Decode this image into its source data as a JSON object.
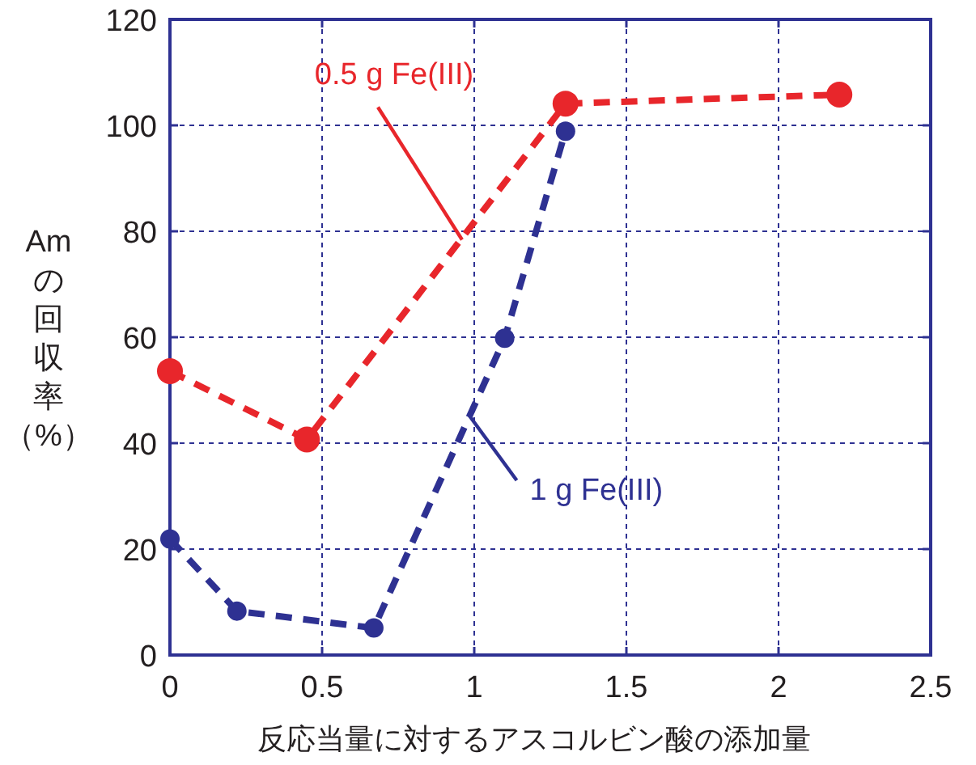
{
  "chart_data": {
    "type": "line",
    "xlabel": "反応当量に対するアスコルビン酸の添加量",
    "ylabel": "Amの回収率（%）",
    "series": [
      {
        "color": "#e8262b",
        "x": [
          0,
          0.45,
          1.3,
          2.2
        ],
        "values": [
          53.6,
          40.7,
          104.1,
          105.8
        ]
      },
      {
        "color": "#2e3192",
        "x": [
          0,
          0.22,
          0.67,
          1.1,
          1.3
        ],
        "values": [
          21.9,
          8.3,
          5.1,
          59.8,
          98.9
        ]
      }
    ],
    "annotations": [
      {
        "text": "0.5 g Fe(III)",
        "x": 0.96,
        "y": 78.4
      },
      {
        "text": "1 g Fe(III)",
        "x": 0.98,
        "y": 45.5
      }
    ],
    "xlim": [
      0,
      2.5
    ],
    "xticks": [
      0,
      0.5,
      1,
      1.5,
      2,
      2.5
    ],
    "ylim": [
      0,
      120
    ],
    "yticks": [
      0,
      20,
      40,
      60,
      80,
      100,
      120
    ],
    "grid": true,
    "marker": "circle",
    "line_style": "dashed"
  }
}
